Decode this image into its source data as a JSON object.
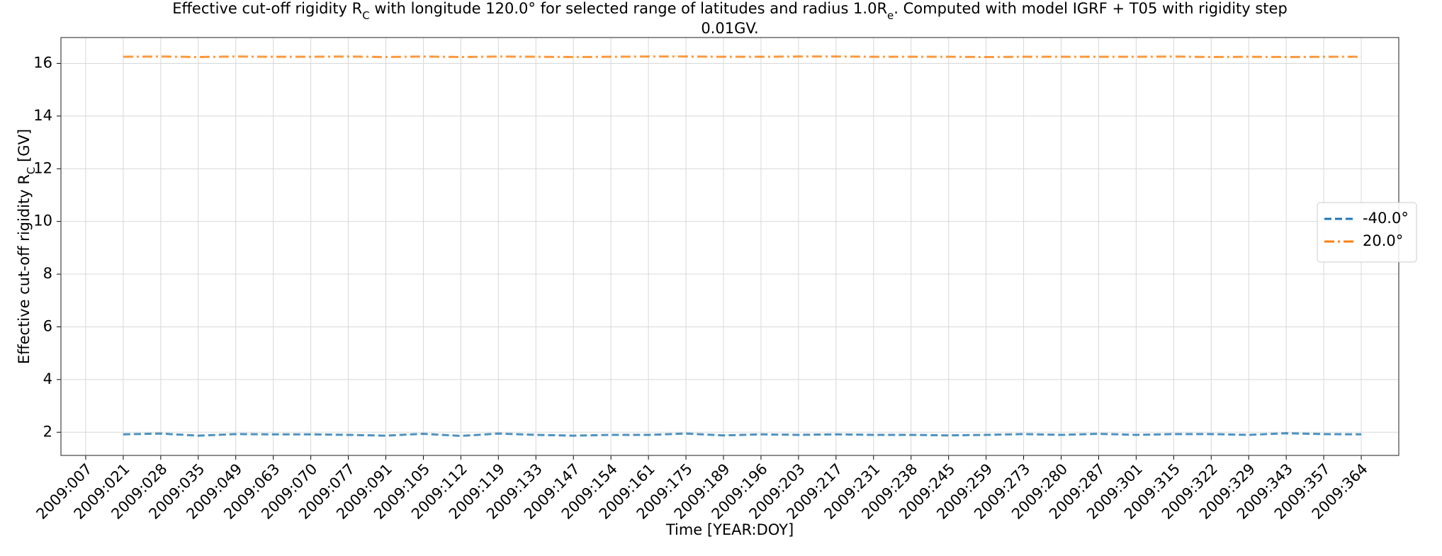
{
  "chart_data": {
    "type": "line",
    "title": [
      [
        "Effective cut-off rigidity R",
        "C",
        " with longitude 120.0° for selected range of latitudes and radius 1.0R",
        "e",
        ". Computed with model IGRF + T05 with rigidity step"
      ],
      [
        "0.01GV."
      ]
    ],
    "xlabel": "Time [YEAR:DOY]",
    "ylabel": [
      "Effective cut-off rigidity R",
      "C",
      " [GV]"
    ],
    "categories": [
      "2009:007",
      "2009:021",
      "2009:028",
      "2009:035",
      "2009:049",
      "2009:063",
      "2009:070",
      "2009:077",
      "2009:091",
      "2009:105",
      "2009:112",
      "2009:119",
      "2009:133",
      "2009:147",
      "2009:154",
      "2009:161",
      "2009:175",
      "2009:189",
      "2009:196",
      "2009:203",
      "2009:217",
      "2009:231",
      "2009:238",
      "2009:245",
      "2009:259",
      "2009:273",
      "2009:280",
      "2009:287",
      "2009:301",
      "2009:315",
      "2009:322",
      "2009:329",
      "2009:343",
      "2009:357",
      "2009:364"
    ],
    "series": [
      {
        "name": "-40.0°",
        "color": "#1f77b4",
        "dash": "dashed",
        "values": [
          null,
          1.92,
          1.95,
          1.87,
          1.93,
          1.92,
          1.92,
          1.9,
          1.87,
          1.94,
          1.86,
          1.95,
          1.9,
          1.87,
          1.9,
          1.9,
          1.95,
          1.88,
          1.92,
          1.9,
          1.92,
          1.9,
          1.9,
          1.88,
          1.9,
          1.93,
          1.9,
          1.94,
          1.9,
          1.93,
          1.93,
          1.9,
          1.96,
          1.93,
          1.92
        ]
      },
      {
        "name": "20.0°",
        "color": "#ff7f0e",
        "dash": "dashdot",
        "values": [
          null,
          16.25,
          16.26,
          16.24,
          16.26,
          16.25,
          16.25,
          16.26,
          16.24,
          16.26,
          16.24,
          16.26,
          16.25,
          16.24,
          16.25,
          16.26,
          16.26,
          16.25,
          16.25,
          16.26,
          16.26,
          16.25,
          16.25,
          16.25,
          16.24,
          16.25,
          16.25,
          16.25,
          16.25,
          16.26,
          16.24,
          16.25,
          16.24,
          16.25,
          16.25
        ]
      }
    ],
    "ylim": [
      1.12,
      16.98
    ],
    "yticks": [
      2,
      4,
      6,
      8,
      10,
      12,
      14,
      16
    ],
    "grid": true,
    "legend": "right"
  }
}
